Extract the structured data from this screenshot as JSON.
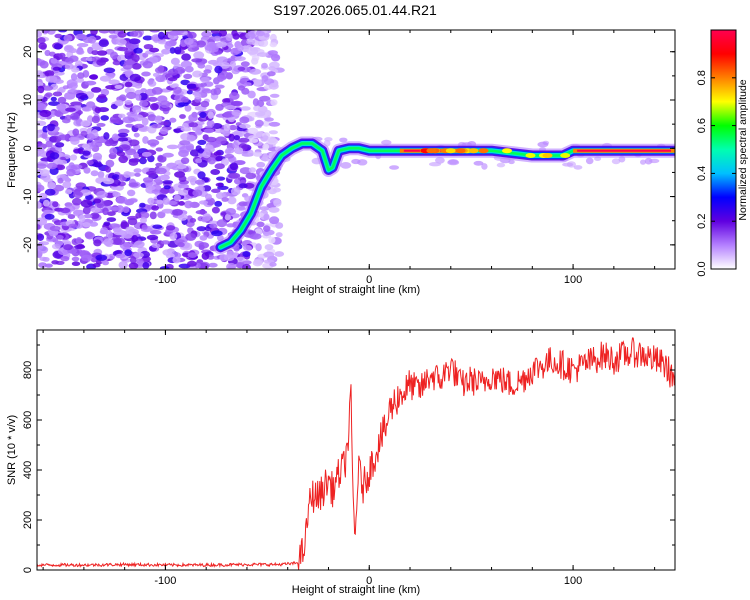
{
  "chart_data": [
    {
      "type": "heatmap",
      "title": "S197.2026.065.01.44.R21",
      "xlabel": "Height of straight line (km)",
      "ylabel": "Frequency (Hz)",
      "xlim": [
        -163,
        150
      ],
      "ylim": [
        -25,
        24.5
      ],
      "xticks": [
        -100,
        0,
        100
      ],
      "yticks": [
        -20,
        -10,
        0,
        10,
        20
      ],
      "tick_labels_x": [
        "-100",
        "0",
        "100"
      ],
      "tick_labels_y": [
        "-20",
        "-10",
        "0",
        "10",
        "20"
      ],
      "noise_region_km": [
        -163,
        -50
      ],
      "signal_track": {
        "x": [
          -73,
          -68,
          -63,
          -58,
          -53,
          -48,
          -43,
          -38,
          -33,
          -28,
          -23,
          -20,
          -18,
          -15,
          -10,
          -5,
          0,
          5,
          10,
          20,
          40,
          60,
          80,
          95,
          100,
          150
        ],
        "y": [
          -20.5,
          -19.5,
          -17,
          -13.5,
          -8,
          -4.5,
          -1.5,
          0,
          1,
          1,
          -0.5,
          -4.5,
          -4,
          -0.5,
          0,
          0,
          -0.5,
          -0.5,
          -0.5,
          -0.5,
          -0.5,
          -0.5,
          -1.5,
          -1.5,
          -0.5,
          -0.5
        ]
      },
      "colorbar": {
        "label": "Normalized spectral amplitude",
        "range": [
          0,
          1
        ],
        "ticks": [
          0.0,
          0.2,
          0.4,
          0.6,
          0.8
        ],
        "tick_labels": [
          "0.0",
          "0.2",
          "0.4",
          "0.6",
          "0.8"
        ],
        "colors": [
          "#ffffff",
          "#b480ff",
          "#6000e0",
          "#0000ff",
          "#00c0ff",
          "#00ffb0",
          "#00ff00",
          "#ffff00",
          "#ff8000",
          "#ff0000",
          "#ff0050"
        ]
      }
    },
    {
      "type": "line",
      "xlabel": "Height of straight line (km)",
      "ylabel": "SNR (10 * v/v)",
      "xlim": [
        -163,
        150
      ],
      "ylim": [
        0,
        960
      ],
      "xticks": [
        -100,
        0,
        100
      ],
      "yticks": [
        0,
        200,
        400,
        600,
        800
      ],
      "tick_labels_x": [
        "-100",
        "0",
        "100"
      ],
      "tick_labels_y": [
        "0",
        "200",
        "400",
        "600",
        "800"
      ],
      "color": "#ee2222",
      "series": [
        {
          "name": "SNR",
          "x": [
            -163,
            -140,
            -120,
            -100,
            -80,
            -60,
            -45,
            -38,
            -35,
            -33,
            -31,
            -30,
            -28,
            -25,
            -22,
            -20,
            -18,
            -15,
            -12,
            -10,
            -9,
            -8,
            -7,
            -6,
            -5,
            -3,
            0,
            3,
            5,
            8,
            10,
            13,
            15,
            18,
            20,
            25,
            30,
            35,
            40,
            45,
            50,
            55,
            60,
            65,
            70,
            75,
            80,
            85,
            90,
            95,
            100,
            105,
            110,
            115,
            120,
            125,
            130,
            135,
            140,
            145,
            150
          ],
          "y": [
            20,
            20,
            22,
            20,
            20,
            22,
            22,
            25,
            30,
            60,
            130,
            240,
            300,
            290,
            330,
            360,
            320,
            380,
            420,
            550,
            700,
            300,
            100,
            320,
            400,
            330,
            400,
            460,
            520,
            560,
            640,
            680,
            700,
            720,
            740,
            720,
            780,
            760,
            820,
            740,
            760,
            740,
            780,
            760,
            740,
            760,
            800,
            820,
            840,
            820,
            800,
            820,
            840,
            860,
            840,
            860,
            870,
            860,
            840,
            820,
            760
          ]
        }
      ]
    }
  ]
}
